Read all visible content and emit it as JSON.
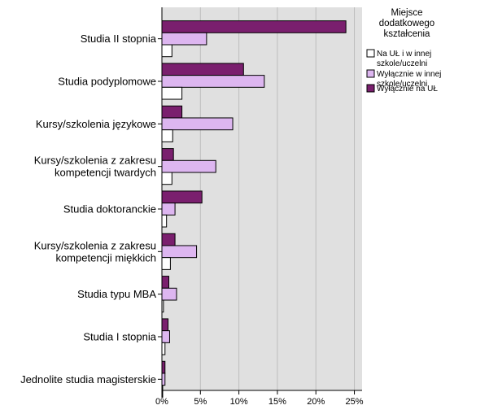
{
  "chart_data": {
    "type": "bar",
    "orientation": "horizontal",
    "categories": [
      [
        "Studia II stopnia"
      ],
      [
        "Studia podyplomowe"
      ],
      [
        "Kursy/szkolenia językowe"
      ],
      [
        "Kursy/szkolenia z zakresu",
        "kompetencji twardych"
      ],
      [
        "Studia doktoranckie"
      ],
      [
        "Kursy/szkolenia z zakresu",
        "kompetencji miękkich"
      ],
      [
        "Studia typu MBA"
      ],
      [
        "Studia I stopnia"
      ],
      [
        "Jednolite studia magisterskie"
      ]
    ],
    "series": [
      {
        "name": "Wyłącznie na UŁ",
        "color": "#7a1f6e",
        "values": [
          23.9,
          10.6,
          2.6,
          1.5,
          5.2,
          1.7,
          0.9,
          0.8,
          0.4
        ]
      },
      {
        "name": "Wyłącznie w innej szkole/uczelni",
        "color": "#ddb6f0",
        "values": [
          5.8,
          13.3,
          9.2,
          7.0,
          1.7,
          4.5,
          1.9,
          1.0,
          0.4
        ]
      },
      {
        "name": "Na UŁ i w innej szkole/uczelni",
        "color": "#ffffff",
        "values": [
          1.3,
          2.6,
          1.4,
          1.3,
          0.6,
          1.1,
          0.2,
          0.4,
          0.1
        ]
      }
    ],
    "xlim": [
      0,
      26
    ],
    "xticks": [
      0,
      5,
      10,
      15,
      20,
      25
    ],
    "xtick_labels": [
      "0%",
      "5%",
      "10%",
      "15%",
      "20%",
      "25%"
    ],
    "legend": {
      "title": [
        "Miejsce",
        "dodatkowego",
        "kształcenia"
      ],
      "entries": [
        {
          "lines": [
            "Na UŁ i w innej",
            "szkole/uczelni"
          ],
          "color": "#ffffff"
        },
        {
          "lines": [
            "Wyłącznie w innej",
            "szkole/uczelni"
          ],
          "color": "#ddb6f0"
        },
        {
          "lines": [
            "Wyłącznie na UŁ"
          ],
          "color": "#7a1f6e"
        }
      ],
      "placement": "right"
    },
    "plot_background": "#e0e0e0"
  }
}
